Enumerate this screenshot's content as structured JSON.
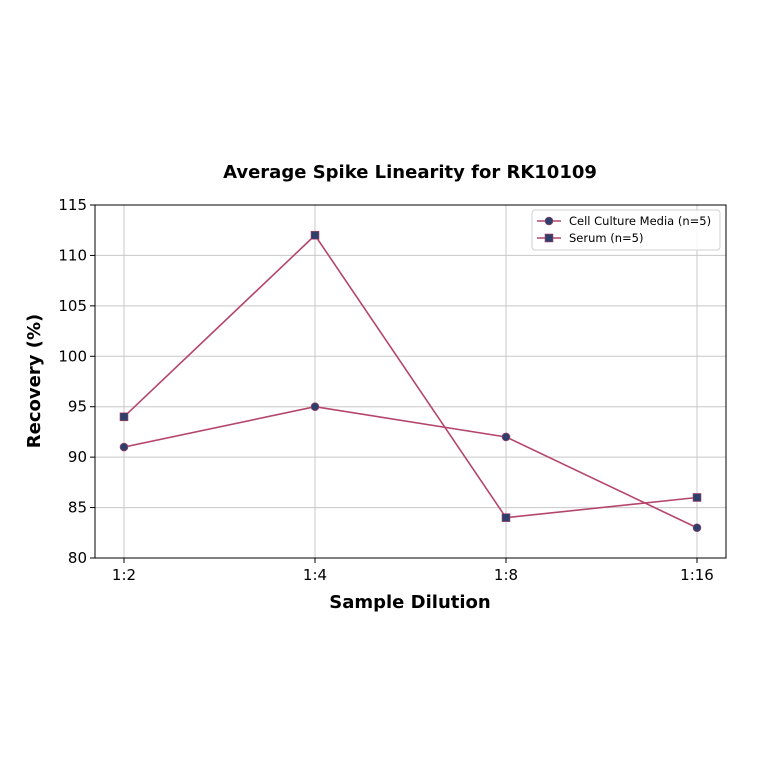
{
  "chart_data": {
    "type": "line",
    "title": "Average Spike Linearity for RK10109",
    "xlabel": "Sample Dilution",
    "ylabel": "Recovery (%)",
    "categories": [
      "1:2",
      "1:4",
      "1:8",
      "1:16"
    ],
    "ylim": [
      80,
      115
    ],
    "yticks": [
      80,
      85,
      90,
      95,
      100,
      105,
      110,
      115
    ],
    "grid": true,
    "legend_position": "upper right",
    "series": [
      {
        "name": "Cell Culture Media (n=5)",
        "marker": "circle",
        "values": [
          91,
          95,
          92,
          83
        ]
      },
      {
        "name": "Serum (n=5)",
        "marker": "square",
        "values": [
          94,
          112,
          84,
          86
        ]
      }
    ],
    "colors": {
      "line": "#b5466b",
      "marker_fill": "#2e3f6b",
      "grid": "#c8c8c8",
      "axis": "#000000"
    }
  }
}
